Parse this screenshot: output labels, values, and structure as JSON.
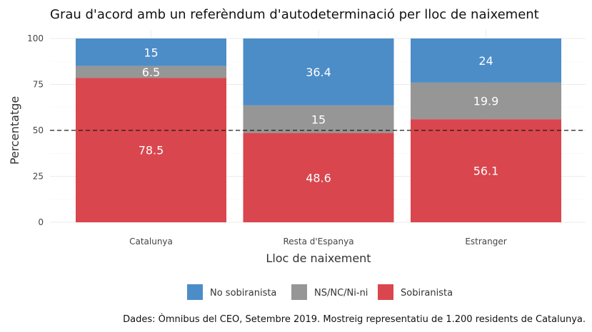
{
  "chart_data": {
    "type": "bar",
    "stacked": true,
    "title": "Grau d'acord amb un referèndum d'autodeterminació per lloc de naixement",
    "xlabel": "Lloc de naixement",
    "ylabel": "Percentatge",
    "caption": "Dades: Òmnibus del CEO, Setembre 2019. Mostreig representatiu de 1.200 residents de Catalunya.",
    "categories": [
      "Catalunya",
      "Resta d'Espanya",
      "Estranger"
    ],
    "series": [
      {
        "name": "Sobiranista",
        "values": [
          78.5,
          48.6,
          56.1
        ],
        "labels": [
          "78.5",
          "48.6",
          "56.1"
        ],
        "color": "#d7363f"
      },
      {
        "name": "NS/NC/Ni-ni",
        "values": [
          6.5,
          15,
          19.9
        ],
        "labels": [
          "6.5",
          "15",
          "19.9"
        ],
        "color": "#8d8d8d"
      },
      {
        "name": "No sobiranista",
        "values": [
          15,
          36.4,
          24
        ],
        "labels": [
          "15",
          "36.4",
          "24"
        ],
        "color": "#3d83c3"
      }
    ],
    "legend_order": [
      "No sobiranista",
      "NS/NC/Ni-ni",
      "Sobiranista"
    ],
    "legend_position": "bottom",
    "ylim": [
      0,
      100
    ],
    "yticks": [
      0,
      25,
      50,
      75,
      100
    ],
    "reference_line": {
      "y": 50,
      "style": "dashed"
    },
    "grid": true
  }
}
